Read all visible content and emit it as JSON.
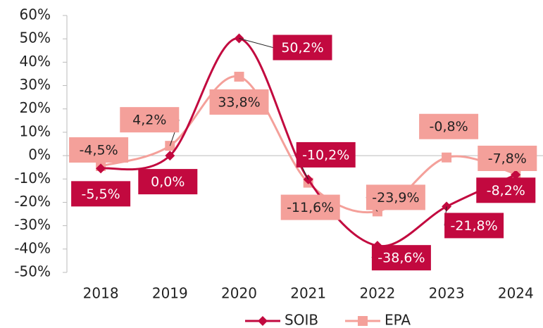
{
  "chart_data": {
    "type": "line",
    "categories": [
      "2018",
      "2019",
      "2020",
      "2021",
      "2022",
      "2023",
      "2024"
    ],
    "series": [
      {
        "name": "SOIB",
        "color": "#c2093f",
        "marker": "diamond",
        "values": [
          -5.5,
          0.0,
          50.2,
          -10.2,
          -38.6,
          -21.8,
          -8.2
        ],
        "value_labels": [
          "-5,5%",
          "0,0%",
          "50,2%",
          "-10,2%",
          "-38,6%",
          "-21,8%",
          "-8,2%"
        ]
      },
      {
        "name": "EPA",
        "color": "#f4a09a",
        "marker": "square",
        "values": [
          -4.5,
          4.2,
          33.8,
          -11.6,
          -23.9,
          -0.8,
          -7.8
        ],
        "value_labels": [
          "-4,5%",
          "4,2%",
          "33,8%",
          "-11,6%",
          "-23,9%",
          "-0,8%",
          "-7,8%"
        ]
      }
    ],
    "ylim": [
      -50,
      60
    ],
    "yticks": [
      {
        "value": -50,
        "label": "-50%"
      },
      {
        "value": -40,
        "label": "-40%"
      },
      {
        "value": -30,
        "label": "-30%"
      },
      {
        "value": -20,
        "label": "-20%"
      },
      {
        "value": -10,
        "label": "-10%"
      },
      {
        "value": 0,
        "label": "0%"
      },
      {
        "value": 10,
        "label": "10%"
      },
      {
        "value": 20,
        "label": "20%"
      },
      {
        "value": 30,
        "label": "30%"
      },
      {
        "value": 40,
        "label": "40%"
      },
      {
        "value": 50,
        "label": "50%"
      },
      {
        "value": 60,
        "label": "60%"
      }
    ],
    "legend": "bottom",
    "grid": false,
    "smooth": true
  }
}
